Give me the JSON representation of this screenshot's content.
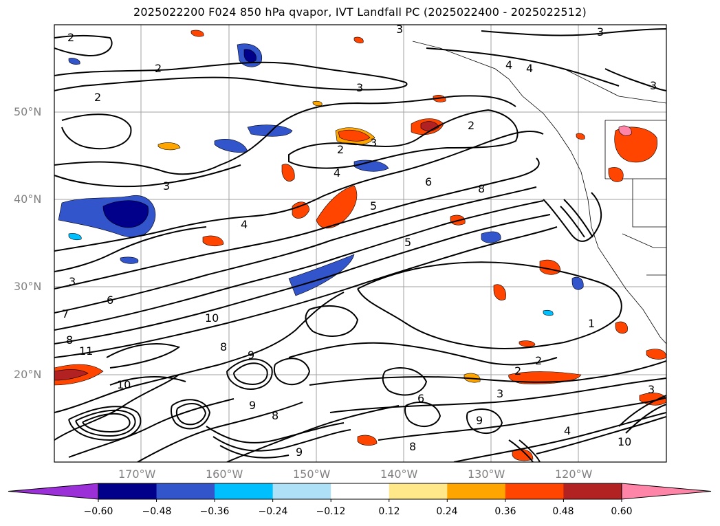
{
  "title": "2025022200 F024 850 hPa qvapor, IVT Landfall PC (2025022400 - 2025022512)",
  "map": {
    "lat_labels": [
      "50°N",
      "40°N",
      "30°N",
      "20°N"
    ],
    "lon_labels": [
      "170°W",
      "160°W",
      "150°W",
      "140°W",
      "130°W",
      "120°W"
    ],
    "gridlines": true,
    "contour_labels": [
      "2",
      "2",
      "3",
      "2",
      "3",
      "3",
      "3",
      "2",
      "4",
      "4",
      "3",
      "3",
      "2",
      "4",
      "6",
      "8",
      "4",
      "5",
      "5",
      "3",
      "6",
      "10",
      "7",
      "8",
      "11",
      "8",
      "9",
      "10",
      "9",
      "8",
      "6",
      "9",
      "8",
      "1",
      "2",
      "2",
      "3",
      "3",
      "4",
      "10",
      "9"
    ]
  },
  "colorbar": {
    "tick_labels": [
      "−0.60",
      "−0.48",
      "−0.36",
      "−0.24",
      "−0.12",
      "0.12",
      "0.24",
      "0.36",
      "0.48",
      "0.60"
    ],
    "colors": [
      "#9b30d9",
      "#00008b",
      "#3355cc",
      "#00bfff",
      "#aee0f8",
      "#ffffff",
      "#ffe88a",
      "#ffa500",
      "#ff4500",
      "#b22222",
      "#ff85a8"
    ],
    "extend": "both"
  }
}
